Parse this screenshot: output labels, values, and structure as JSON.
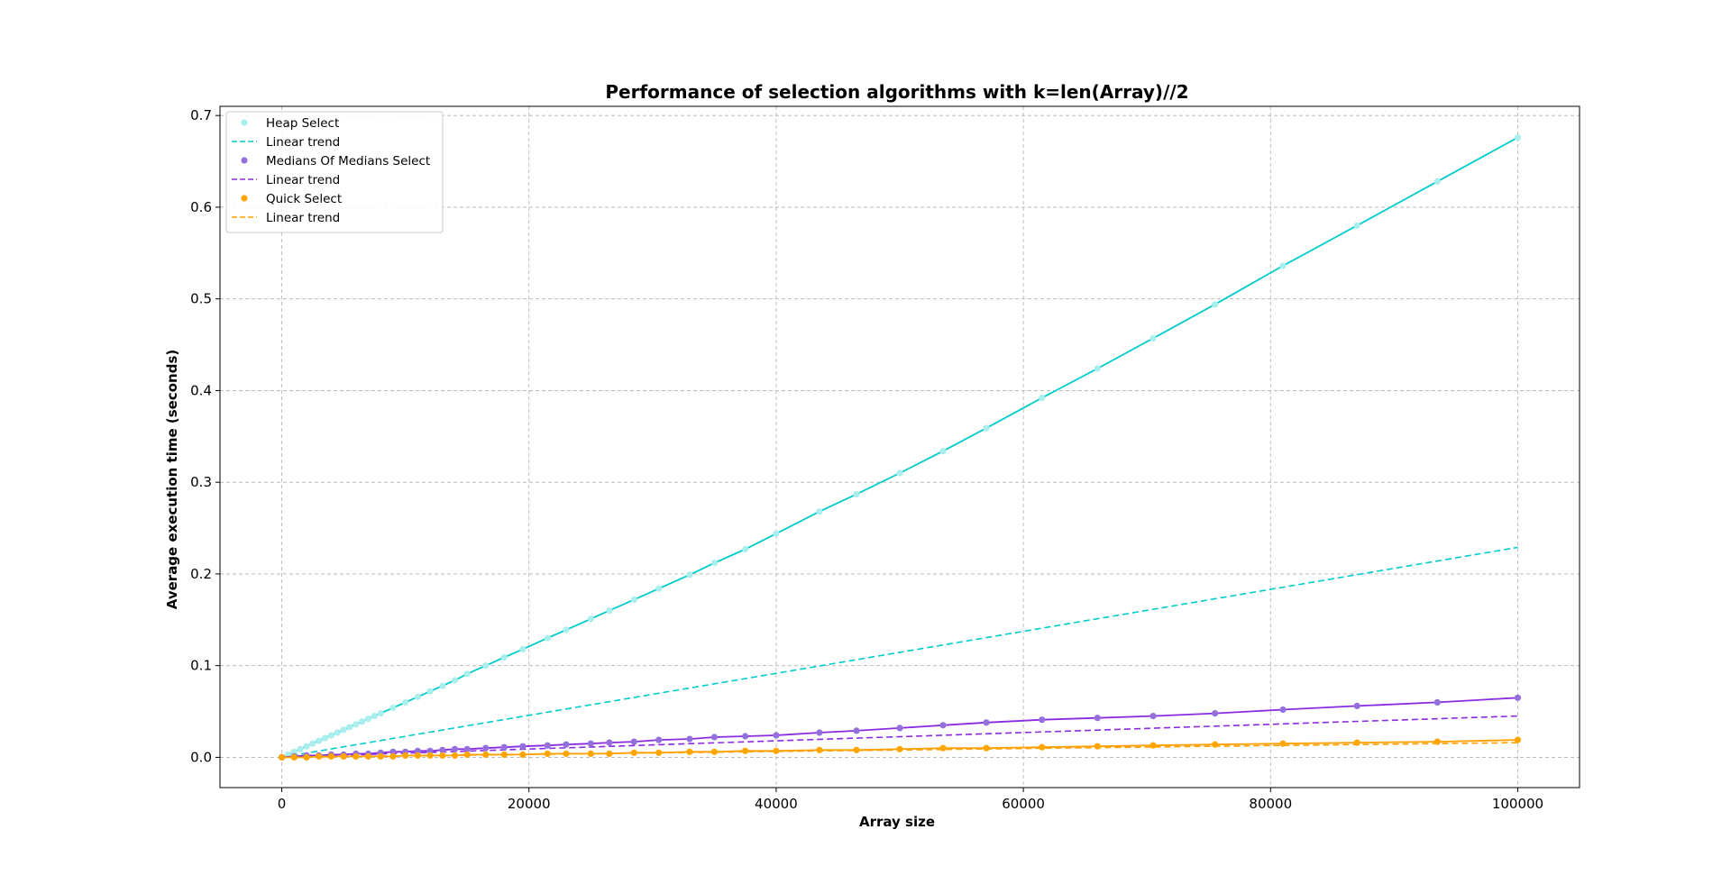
{
  "chart_data": {
    "type": "line",
    "title": "Performance of selection algorithms with k=len(Array)//2",
    "xlabel": "Array size",
    "ylabel": "Average execution time (seconds)",
    "xlim": [
      -5000,
      105000
    ],
    "ylim": [
      -0.033,
      0.71
    ],
    "x_ticks": [
      0,
      20000,
      40000,
      60000,
      80000,
      100000
    ],
    "y_ticks": [
      0.0,
      0.1,
      0.2,
      0.3,
      0.4,
      0.5,
      0.6,
      0.7
    ],
    "grid": true,
    "legend_position": "top-left",
    "series": [
      {
        "name": "Heap Select",
        "kind": "measured",
        "marker_color": "#aaeeee",
        "line_color": "#00cccc",
        "x": [
          0,
          500,
          1000,
          1500,
          2000,
          2500,
          3000,
          3500,
          4000,
          4500,
          5000,
          5500,
          6000,
          6500,
          7000,
          7500,
          8000,
          9000,
          10000,
          11000,
          12000,
          13000,
          14000,
          15000,
          16500,
          18000,
          19500,
          21500,
          23000,
          25000,
          26500,
          28500,
          30500,
          33000,
          35000,
          37500,
          40000,
          43500,
          46500,
          50000,
          53500,
          57000,
          61500,
          66000,
          70500,
          75500,
          81000,
          87000,
          93500,
          100000
        ],
        "y": [
          0.0,
          0.003,
          0.006,
          0.009,
          0.012,
          0.015,
          0.018,
          0.021,
          0.024,
          0.027,
          0.03,
          0.033,
          0.036,
          0.039,
          0.042,
          0.045,
          0.048,
          0.054,
          0.06,
          0.066,
          0.072,
          0.078,
          0.084,
          0.091,
          0.1,
          0.109,
          0.118,
          0.13,
          0.139,
          0.151,
          0.16,
          0.172,
          0.184,
          0.199,
          0.212,
          0.227,
          0.244,
          0.268,
          0.287,
          0.31,
          0.334,
          0.359,
          0.392,
          0.424,
          0.457,
          0.494,
          0.536,
          0.58,
          0.628,
          0.676
        ]
      },
      {
        "name": "Linear trend",
        "kind": "trend",
        "line_color": "#00cccc",
        "x": [
          0,
          100000
        ],
        "y": [
          0.0,
          0.229
        ]
      },
      {
        "name": "Medians Of Medians Select",
        "kind": "measured",
        "marker_color": "#9370db",
        "line_color": "#8a2be2",
        "x": [
          0,
          1000,
          2000,
          3000,
          4000,
          5000,
          6000,
          7000,
          8000,
          9000,
          10000,
          11000,
          12000,
          13000,
          14000,
          15000,
          16500,
          18000,
          19500,
          21500,
          23000,
          25000,
          26500,
          28500,
          30500,
          33000,
          35000,
          37500,
          40000,
          43500,
          46500,
          50000,
          53500,
          57000,
          61500,
          66000,
          70500,
          75500,
          81000,
          87000,
          93500,
          100000
        ],
        "y": [
          0.0,
          0.001,
          0.002,
          0.002,
          0.003,
          0.003,
          0.004,
          0.004,
          0.005,
          0.006,
          0.006,
          0.007,
          0.007,
          0.008,
          0.009,
          0.009,
          0.01,
          0.011,
          0.012,
          0.013,
          0.014,
          0.015,
          0.016,
          0.017,
          0.019,
          0.02,
          0.022,
          0.023,
          0.024,
          0.027,
          0.029,
          0.032,
          0.035,
          0.038,
          0.041,
          0.043,
          0.045,
          0.048,
          0.052,
          0.056,
          0.06,
          0.065
        ]
      },
      {
        "name": "Linear trend",
        "kind": "trend",
        "line_color": "#8a2be2",
        "x": [
          0,
          100000
        ],
        "y": [
          0.0,
          0.045
        ]
      },
      {
        "name": "Quick Select",
        "kind": "measured",
        "marker_color": "#ffa500",
        "line_color": "#ff9f00",
        "x": [
          0,
          1000,
          2000,
          3000,
          4000,
          5000,
          6000,
          7000,
          8000,
          9000,
          10000,
          11000,
          12000,
          13000,
          14000,
          15000,
          16500,
          18000,
          19500,
          21500,
          23000,
          25000,
          26500,
          28500,
          30500,
          33000,
          35000,
          37500,
          40000,
          43500,
          46500,
          50000,
          53500,
          57000,
          61500,
          66000,
          70500,
          75500,
          81000,
          87000,
          93500,
          100000
        ],
        "y": [
          0.0,
          0.0,
          0.0,
          0.001,
          0.001,
          0.001,
          0.001,
          0.001,
          0.001,
          0.001,
          0.002,
          0.002,
          0.002,
          0.002,
          0.002,
          0.003,
          0.003,
          0.003,
          0.003,
          0.004,
          0.004,
          0.004,
          0.004,
          0.005,
          0.005,
          0.006,
          0.006,
          0.007,
          0.007,
          0.008,
          0.008,
          0.009,
          0.01,
          0.01,
          0.011,
          0.012,
          0.013,
          0.014,
          0.015,
          0.016,
          0.017,
          0.019
        ]
      },
      {
        "name": "Linear trend",
        "kind": "trend",
        "line_color": "#ff9f00",
        "x": [
          0,
          100000
        ],
        "y": [
          0.0,
          0.016
        ]
      }
    ]
  }
}
